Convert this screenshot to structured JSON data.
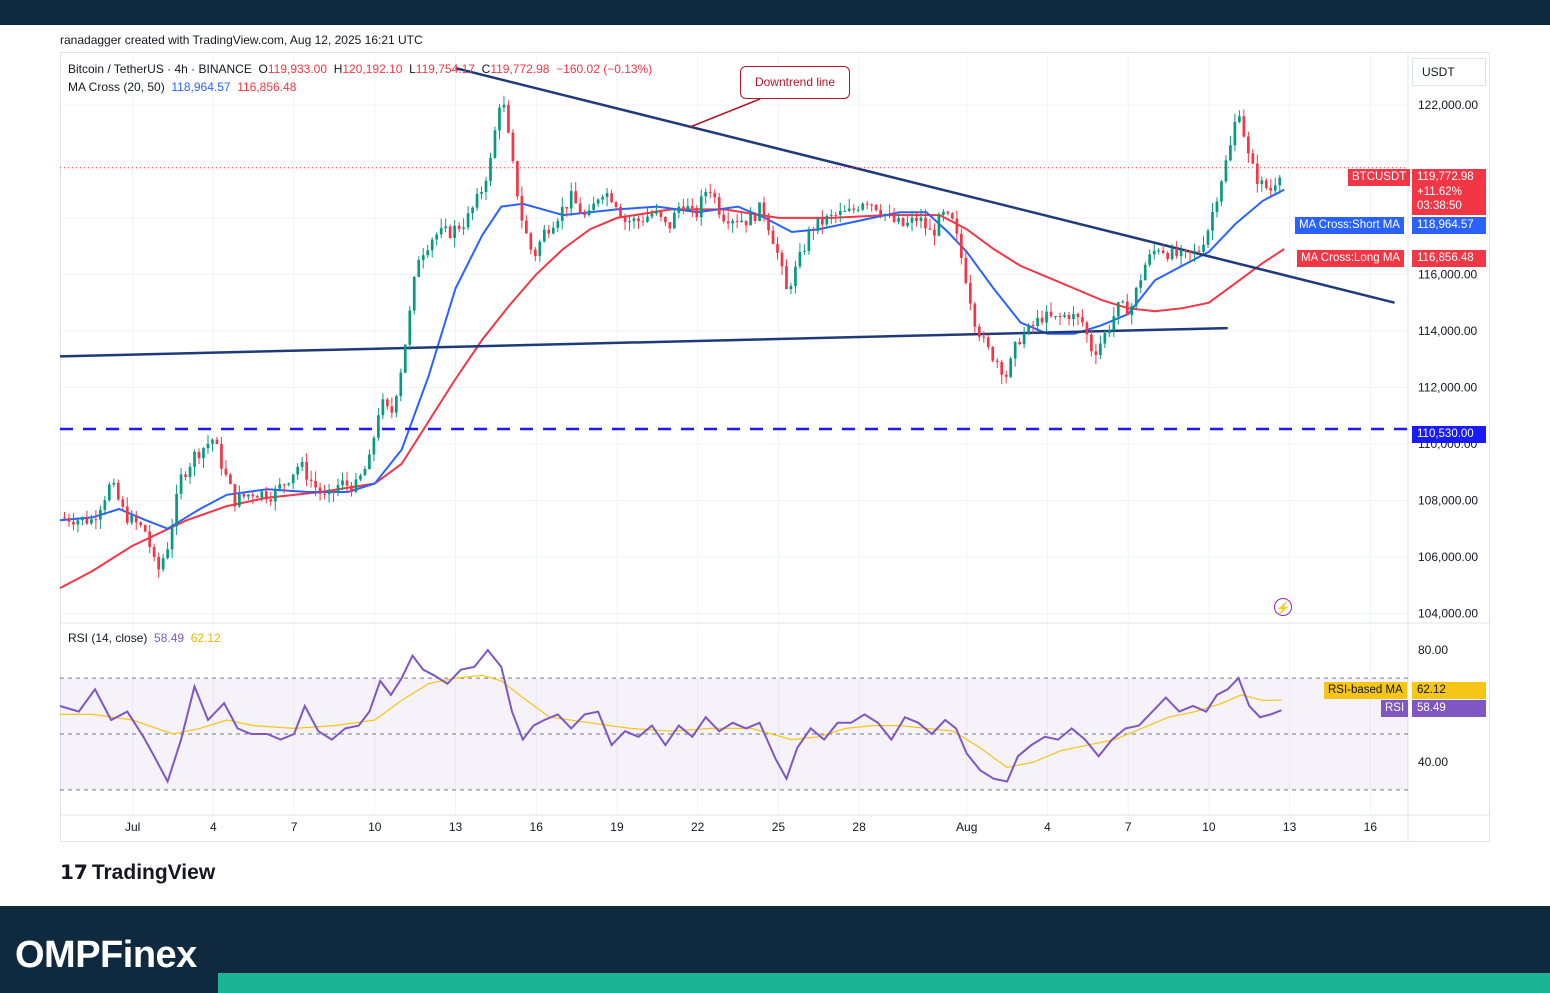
{
  "credit": "ranadagger created with TradingView.com, Aug 12, 2025 16:21 UTC",
  "legend": {
    "symbol": "Bitcoin / TetherUS · 4h · BINANCE",
    "o_label": "O",
    "o": "119,933.00",
    "h_label": "H",
    "h": "120,192.10",
    "l_label": "L",
    "l": "119,754.17",
    "c_label": "C",
    "c": "119,772.98",
    "chg": "−160.02 (−0.13%)",
    "ma_label": "MA Cross (20, 50)",
    "ma_short": "118,964.57",
    "ma_long": "116,856.48",
    "rsi_label": "RSI (14, close)",
    "rsi": "58.49",
    "rsi_ma": "62.12"
  },
  "currency": "USDT",
  "callout": "Downtrend line",
  "tags": {
    "symbol": "BTCUSDT",
    "last_price": "119,772.98",
    "change_pct": "+11.62%",
    "countdown": "03:38:50",
    "short_ma_label": "MA Cross:Short MA",
    "short_ma_value": "118,964.57",
    "long_ma_label": "MA Cross:Long MA",
    "long_ma_value": "116,856.48",
    "support_value": "110,530.00",
    "rsi_ma_label": "RSI-based MA",
    "rsi_ma_value": "62.12",
    "rsi_label": "RSI",
    "rsi_value": "58.49"
  },
  "brand": {
    "tradingview": "TradingView",
    "site": "OMPFinex"
  },
  "colors": {
    "up": "#089981",
    "down": "#f23645",
    "short_ma": "#2962ff",
    "long_ma": "#f23645",
    "trendline": "#1f3a7a",
    "support": "#1a1aff",
    "rsi": "#7e57c2",
    "rsi_ma": "#f5c518"
  },
  "chart_data": {
    "type": "candlestick",
    "symbol": "BTCUSDT",
    "interval": "4h",
    "x_tick_labels": [
      "Jul",
      "4",
      "7",
      "10",
      "13",
      "16",
      "19",
      "22",
      "25",
      "28",
      "Aug",
      "4",
      "7",
      "10",
      "13",
      "16"
    ],
    "x_day_index": [
      0,
      3,
      6,
      9,
      12,
      15,
      18,
      21,
      24,
      27,
      31,
      34,
      37,
      40,
      43,
      46
    ],
    "x_range_days": [
      -2.7,
      47.4
    ],
    "price_ticks": [
      104000,
      106000,
      108000,
      110000,
      112000,
      114000,
      116000,
      118000,
      120000,
      122000
    ],
    "price_tick_labels": [
      "104,000.00",
      "106,000.00",
      "108,000.00",
      "110,000.00",
      "112,000.00",
      "114,000.00",
      "116,000.00",
      "",
      "",
      "122,000.00"
    ],
    "ylim": [
      103700,
      123800
    ],
    "close_path": [
      [
        -2.7,
        107400
      ],
      [
        -1.5,
        107300
      ],
      [
        -0.8,
        108600
      ],
      [
        -0.3,
        107500
      ],
      [
        0.5,
        106900
      ],
      [
        0.9,
        105400
      ],
      [
        1.3,
        106400
      ],
      [
        1.8,
        108800
      ],
      [
        2.3,
        109600
      ],
      [
        3.0,
        110200
      ],
      [
        3.4,
        109000
      ],
      [
        3.8,
        108000
      ],
      [
        4.5,
        108300
      ],
      [
        5.2,
        108200
      ],
      [
        5.7,
        108700
      ],
      [
        6.2,
        109300
      ],
      [
        6.7,
        108600
      ],
      [
        7.2,
        108000
      ],
      [
        7.7,
        108600
      ],
      [
        8.3,
        108500
      ],
      [
        8.8,
        109400
      ],
      [
        9.2,
        111500
      ],
      [
        9.6,
        111000
      ],
      [
        10.0,
        112800
      ],
      [
        10.3,
        114600
      ],
      [
        10.6,
        116600
      ],
      [
        11.2,
        117400
      ],
      [
        11.8,
        117500
      ],
      [
        12.4,
        117900
      ],
      [
        12.9,
        118800
      ],
      [
        13.3,
        120000
      ],
      [
        13.7,
        122500
      ],
      [
        14.1,
        120000
      ],
      [
        14.5,
        117800
      ],
      [
        14.9,
        116600
      ],
      [
        15.3,
        117500
      ],
      [
        15.8,
        118100
      ],
      [
        16.3,
        118700
      ],
      [
        16.9,
        117900
      ],
      [
        17.4,
        119000
      ],
      [
        17.9,
        118700
      ],
      [
        18.3,
        117900
      ],
      [
        18.8,
        117900
      ],
      [
        19.4,
        118200
      ],
      [
        19.9,
        117600
      ],
      [
        20.4,
        118600
      ],
      [
        20.9,
        118000
      ],
      [
        21.4,
        119200
      ],
      [
        21.9,
        118100
      ],
      [
        22.4,
        118000
      ],
      [
        22.9,
        117900
      ],
      [
        23.4,
        118400
      ],
      [
        23.9,
        117000
      ],
      [
        24.3,
        115400
      ],
      [
        24.7,
        116300
      ],
      [
        25.2,
        117600
      ],
      [
        25.7,
        117900
      ],
      [
        26.2,
        118100
      ],
      [
        26.7,
        118200
      ],
      [
        27.2,
        118700
      ],
      [
        27.7,
        118400
      ],
      [
        28.2,
        117900
      ],
      [
        28.7,
        117700
      ],
      [
        29.2,
        118000
      ],
      [
        29.7,
        117400
      ],
      [
        30.1,
        118100
      ],
      [
        30.5,
        117800
      ],
      [
        30.9,
        116200
      ],
      [
        31.3,
        114400
      ],
      [
        31.7,
        113400
      ],
      [
        32.1,
        113000
      ],
      [
        32.5,
        112400
      ],
      [
        32.9,
        113700
      ],
      [
        33.3,
        114000
      ],
      [
        33.8,
        114500
      ],
      [
        34.3,
        114400
      ],
      [
        34.8,
        114600
      ],
      [
        35.3,
        114300
      ],
      [
        35.7,
        113200
      ],
      [
        36.1,
        113800
      ],
      [
        36.6,
        114800
      ],
      [
        37.1,
        114800
      ],
      [
        37.6,
        116300
      ],
      [
        38.1,
        117000
      ],
      [
        38.6,
        116700
      ],
      [
        39.1,
        116600
      ],
      [
        39.6,
        116800
      ],
      [
        40.0,
        117700
      ],
      [
        40.4,
        119200
      ],
      [
        40.8,
        120500
      ],
      [
        41.1,
        122000
      ],
      [
        41.5,
        120000
      ],
      [
        41.9,
        119200
      ],
      [
        42.3,
        119000
      ],
      [
        42.7,
        119800
      ]
    ],
    "ma_short_path": [
      [
        -2.7,
        107300
      ],
      [
        -1.5,
        107400
      ],
      [
        -0.5,
        107700
      ],
      [
        0.5,
        107300
      ],
      [
        1.3,
        107000
      ],
      [
        2.5,
        107700
      ],
      [
        3.5,
        108200
      ],
      [
        5.0,
        108400
      ],
      [
        6.5,
        108300
      ],
      [
        8.0,
        108300
      ],
      [
        9.0,
        108600
      ],
      [
        10.0,
        109800
      ],
      [
        11.0,
        112400
      ],
      [
        12.0,
        115500
      ],
      [
        13.0,
        117400
      ],
      [
        13.7,
        118400
      ],
      [
        14.5,
        118500
      ],
      [
        16.0,
        118100
      ],
      [
        17.0,
        118200
      ],
      [
        18.0,
        118300
      ],
      [
        19.5,
        118400
      ],
      [
        21.0,
        118200
      ],
      [
        22.5,
        118400
      ],
      [
        23.5,
        118000
      ],
      [
        24.5,
        117500
      ],
      [
        25.5,
        117600
      ],
      [
        26.5,
        117800
      ],
      [
        27.5,
        118000
      ],
      [
        28.5,
        118200
      ],
      [
        29.5,
        118200
      ],
      [
        30.3,
        117500
      ],
      [
        31.0,
        116800
      ],
      [
        32.0,
        115500
      ],
      [
        33.0,
        114300
      ],
      [
        34.0,
        113900
      ],
      [
        35.0,
        113900
      ],
      [
        36.0,
        114200
      ],
      [
        37.0,
        114600
      ],
      [
        38.0,
        115800
      ],
      [
        39.0,
        116300
      ],
      [
        40.0,
        116800
      ],
      [
        41.0,
        117800
      ],
      [
        42.0,
        118600
      ],
      [
        42.8,
        119000
      ]
    ],
    "ma_long_path": [
      [
        -2.7,
        104900
      ],
      [
        -1.5,
        105500
      ],
      [
        0.0,
        106400
      ],
      [
        2.0,
        107300
      ],
      [
        3.5,
        107800
      ],
      [
        5.0,
        108100
      ],
      [
        7.0,
        108300
      ],
      [
        9.0,
        108600
      ],
      [
        10.0,
        109300
      ],
      [
        11.0,
        110800
      ],
      [
        12.0,
        112300
      ],
      [
        13.0,
        113700
      ],
      [
        14.0,
        114900
      ],
      [
        15.0,
        116000
      ],
      [
        16.0,
        116900
      ],
      [
        17.0,
        117600
      ],
      [
        18.0,
        118000
      ],
      [
        20.0,
        118300
      ],
      [
        22.0,
        118300
      ],
      [
        24.0,
        118000
      ],
      [
        26.0,
        118000
      ],
      [
        28.0,
        118100
      ],
      [
        30.0,
        118100
      ],
      [
        31.0,
        117600
      ],
      [
        32.0,
        116900
      ],
      [
        33.0,
        116300
      ],
      [
        34.0,
        115900
      ],
      [
        35.0,
        115500
      ],
      [
        36.0,
        115100
      ],
      [
        37.0,
        114800
      ],
      [
        38.0,
        114700
      ],
      [
        39.0,
        114800
      ],
      [
        40.0,
        115000
      ],
      [
        41.0,
        115700
      ],
      [
        42.0,
        116400
      ],
      [
        42.8,
        116900
      ]
    ],
    "downtrend_line": [
      [
        12.0,
        123300
      ],
      [
        46.9,
        115000
      ]
    ],
    "support_line": [
      [
        -2.7,
        113100
      ],
      [
        40.7,
        114100
      ]
    ],
    "horizontal_level": 110530,
    "last_price": 119772.98,
    "rsi": {
      "levels": [
        70,
        50,
        30
      ],
      "tick_labels": [
        "80.00",
        "40.00"
      ],
      "ylim": [
        21,
        89
      ],
      "rsi_path": [
        [
          -2.7,
          60
        ],
        [
          -2.0,
          58
        ],
        [
          -1.4,
          66
        ],
        [
          -0.8,
          55
        ],
        [
          -0.2,
          58
        ],
        [
          0.4,
          49
        ],
        [
          0.8,
          42
        ],
        [
          1.3,
          33
        ],
        [
          1.8,
          48
        ],
        [
          2.3,
          67
        ],
        [
          2.8,
          55
        ],
        [
          3.4,
          61
        ],
        [
          3.9,
          52
        ],
        [
          4.4,
          50
        ],
        [
          5.0,
          50
        ],
        [
          5.5,
          48
        ],
        [
          6.0,
          50
        ],
        [
          6.4,
          60
        ],
        [
          6.9,
          51
        ],
        [
          7.4,
          48
        ],
        [
          7.9,
          52
        ],
        [
          8.4,
          53
        ],
        [
          8.8,
          58
        ],
        [
          9.2,
          69
        ],
        [
          9.6,
          64
        ],
        [
          10.0,
          70
        ],
        [
          10.4,
          78
        ],
        [
          10.8,
          73
        ],
        [
          11.2,
          71
        ],
        [
          11.7,
          68
        ],
        [
          12.2,
          73
        ],
        [
          12.7,
          74
        ],
        [
          13.2,
          80
        ],
        [
          13.7,
          74
        ],
        [
          14.1,
          58
        ],
        [
          14.5,
          48
        ],
        [
          14.9,
          53
        ],
        [
          15.3,
          55
        ],
        [
          15.8,
          57
        ],
        [
          16.3,
          52
        ],
        [
          16.8,
          57
        ],
        [
          17.3,
          58
        ],
        [
          17.8,
          46
        ],
        [
          18.3,
          51
        ],
        [
          18.8,
          49
        ],
        [
          19.3,
          53
        ],
        [
          19.8,
          46
        ],
        [
          20.3,
          53
        ],
        [
          20.8,
          49
        ],
        [
          21.3,
          56
        ],
        [
          21.8,
          51
        ],
        [
          22.3,
          54
        ],
        [
          22.8,
          52
        ],
        [
          23.3,
          54
        ],
        [
          23.9,
          41
        ],
        [
          24.3,
          34
        ],
        [
          24.7,
          45
        ],
        [
          25.2,
          52
        ],
        [
          25.7,
          48
        ],
        [
          26.2,
          54
        ],
        [
          26.7,
          54
        ],
        [
          27.2,
          57
        ],
        [
          27.7,
          54
        ],
        [
          28.2,
          48
        ],
        [
          28.7,
          56
        ],
        [
          29.2,
          54
        ],
        [
          29.7,
          50
        ],
        [
          30.2,
          55
        ],
        [
          30.6,
          52
        ],
        [
          31.0,
          43
        ],
        [
          31.5,
          37
        ],
        [
          32.0,
          34
        ],
        [
          32.5,
          33
        ],
        [
          32.9,
          42
        ],
        [
          33.4,
          46
        ],
        [
          33.9,
          49
        ],
        [
          34.4,
          48
        ],
        [
          34.9,
          52
        ],
        [
          35.4,
          48
        ],
        [
          35.9,
          42
        ],
        [
          36.4,
          48
        ],
        [
          36.9,
          52
        ],
        [
          37.4,
          53
        ],
        [
          37.9,
          58
        ],
        [
          38.4,
          63
        ],
        [
          38.9,
          58
        ],
        [
          39.4,
          60
        ],
        [
          39.9,
          58
        ],
        [
          40.3,
          64
        ],
        [
          40.7,
          66
        ],
        [
          41.1,
          70
        ],
        [
          41.5,
          60
        ],
        [
          41.9,
          56
        ],
        [
          42.3,
          57
        ],
        [
          42.7,
          58.5
        ]
      ],
      "rsi_ma_path": [
        [
          -2.7,
          57
        ],
        [
          -1.5,
          57
        ],
        [
          0.0,
          55
        ],
        [
          1.5,
          50
        ],
        [
          2.5,
          52
        ],
        [
          3.5,
          55
        ],
        [
          4.5,
          53
        ],
        [
          6.0,
          52
        ],
        [
          7.5,
          53
        ],
        [
          9.0,
          55
        ],
        [
          10.0,
          62
        ],
        [
          11.0,
          68
        ],
        [
          12.0,
          70
        ],
        [
          13.0,
          71
        ],
        [
          13.7,
          69
        ],
        [
          14.5,
          63
        ],
        [
          15.5,
          56
        ],
        [
          17.0,
          54
        ],
        [
          18.5,
          52
        ],
        [
          20.0,
          51
        ],
        [
          21.5,
          52
        ],
        [
          23.0,
          52
        ],
        [
          24.5,
          48
        ],
        [
          25.5,
          49
        ],
        [
          26.5,
          52
        ],
        [
          27.5,
          53
        ],
        [
          28.5,
          53
        ],
        [
          29.5,
          52
        ],
        [
          30.5,
          51
        ],
        [
          31.5,
          45
        ],
        [
          32.5,
          38
        ],
        [
          33.5,
          40
        ],
        [
          34.5,
          44
        ],
        [
          35.5,
          46
        ],
        [
          36.5,
          48
        ],
        [
          37.5,
          52
        ],
        [
          38.5,
          56
        ],
        [
          39.5,
          58
        ],
        [
          40.5,
          61
        ],
        [
          41.2,
          64
        ],
        [
          42.0,
          62
        ],
        [
          42.7,
          62.1
        ]
      ]
    }
  }
}
